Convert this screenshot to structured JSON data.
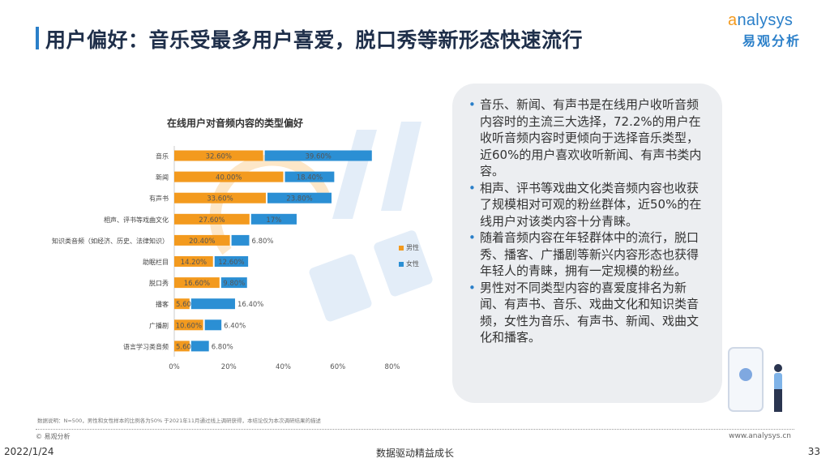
{
  "header": {
    "title": "用户偏好：音乐受最多用户喜爱，脱口秀等新形态快速流行",
    "logo_en": "analysys",
    "logo_cn": "易观分析"
  },
  "watermark": {
    "en": "analysys",
    "cn": "易观分析"
  },
  "chart_data": {
    "type": "bar",
    "orientation": "horizontal",
    "stacked": true,
    "title": "在线用户对音频内容的类型偏好",
    "categories": [
      "音乐",
      "新闻",
      "有声书",
      "相声、评书等戏曲文化",
      "知识类音频（如经济、历史、法律知识）",
      "助眠栏目",
      "脱口秀",
      "播客",
      "广播剧",
      "语言学习类音频"
    ],
    "series": [
      {
        "name": "男性",
        "color": "#f39a1e",
        "values": [
          32.6,
          40.0,
          33.6,
          27.6,
          20.4,
          14.2,
          16.6,
          5.6,
          10.6,
          5.6
        ],
        "labels": [
          "32.60%",
          "40.00%",
          "33.60%",
          "27.60%",
          "20.40%",
          "14.20%",
          "16.60%",
          "5.60%",
          "10.60%",
          "5.60%"
        ]
      },
      {
        "name": "女性",
        "color": "#2b8fd4",
        "values": [
          39.6,
          18.4,
          23.8,
          17,
          6.8,
          12.6,
          9.8,
          16.4,
          6.4,
          6.8
        ],
        "labels": [
          "39.60%",
          "18.40%",
          "23.80%",
          "17%",
          "6.80%",
          "12.60%",
          "9.80%",
          "16.40%",
          "6.40%",
          "6.80%"
        ]
      }
    ],
    "xlim": [
      0,
      80
    ],
    "xticks": [
      "0%",
      "20%",
      "40%",
      "60%",
      "80%"
    ],
    "grid": false,
    "legend": "right"
  },
  "panel": {
    "bullets": [
      "音乐、新闻、有声书是在线用户收听音频内容时的主流三大选择，72.2%的用户在收听音频内容时更倾向于选择音乐类型，近60%的用户喜欢收听新闻、有声书类内容。",
      "相声、评书等戏曲文化类音频内容也收获了规模相对可观的粉丝群体，近50%的在线用户对该类内容十分青睐。",
      "随着音频内容在年轻群体中的流行，脱口秀、播客、广播剧等新兴内容形态也获得年轻人的青睐，拥有一定规模的粉丝。",
      "男性对不同类型内容的喜爱度排名为新闻、有声书、音乐、戏曲文化和知识类音频，女性为音乐、有声书、新闻、戏曲文化和播客。"
    ]
  },
  "footer": {
    "note": "数据说明：N=500，男性和女性样本的比例各为50% 于2021年11月通过线上调研获得，本结论仅为本次调研结果的描述",
    "copyright": "© 易观分析",
    "site": "www.analysys.cn",
    "date": "2022/1/24",
    "slogan": "数据驱动精益成长",
    "page": "33"
  }
}
